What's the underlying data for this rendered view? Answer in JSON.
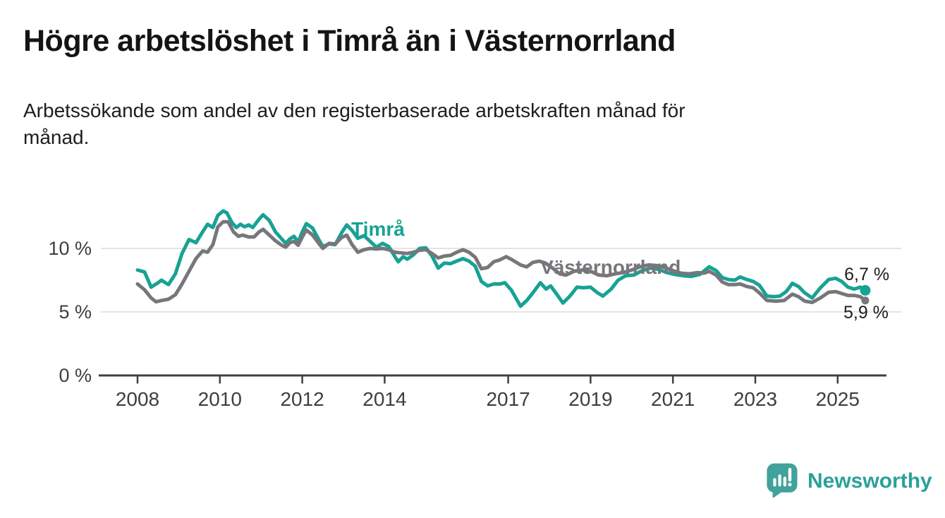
{
  "header": {
    "title": "Högre arbetslöshet i Timrå än i Västernorrland",
    "subtitle_line1": "Arbetssökande som andel av den registerbaserade arbetskraften månad för",
    "subtitle_line2": "månad."
  },
  "branding": {
    "name": "Newsworthy",
    "icon": "newsworthy-speech-bubble-bar-chart-icon",
    "icon_color": "#41a29b",
    "text_color": "#2aa199"
  },
  "chart_data": {
    "type": "line",
    "title": "Högre arbetslöshet i Timrå än i Västernorrland",
    "subtitle": "Arbetssökande som andel av den registerbaserade arbetskraften månad för månad.",
    "unit": "%",
    "xlim": [
      2008,
      2025.67
    ],
    "ylim": [
      0,
      14.5
    ],
    "legend_position": "inline-labels",
    "grid": "horizontal",
    "style": {
      "grid_color": "#dbdbdb",
      "axis_color": "#3f3f3f",
      "background": "#ffffff"
    },
    "y_axis": {
      "gridlines": [
        5,
        10
      ],
      "ticks": [
        {
          "value": 0,
          "label": "0 %"
        },
        {
          "value": 5,
          "label": "5 %"
        },
        {
          "value": 10,
          "label": "10 %"
        }
      ]
    },
    "x_axis": {
      "ticks": [
        {
          "year": 2008,
          "label": "2008"
        },
        {
          "year": 2010,
          "label": "2010"
        },
        {
          "year": 2012,
          "label": "2012"
        },
        {
          "year": 2014,
          "label": "2014"
        },
        {
          "year": 2017,
          "label": "2017"
        },
        {
          "year": 2019,
          "label": "2019"
        },
        {
          "year": 2021,
          "label": "2021"
        },
        {
          "year": 2023,
          "label": "2023"
        },
        {
          "year": 2025,
          "label": "2025"
        }
      ]
    },
    "series": [
      {
        "id": "timra",
        "name": "Timrå",
        "color": "#17a294",
        "width": 5,
        "end_dot_radius": 7.5,
        "latest_value_label": "6,7 %",
        "inline_label": {
          "text": "Timrå",
          "x": 2013.19,
          "y": 11.0
        },
        "points": [
          [
            2008.0,
            8.3
          ],
          [
            2008.17,
            8.15
          ],
          [
            2008.33,
            6.95
          ],
          [
            2008.5,
            7.3
          ],
          [
            2008.58,
            7.5
          ],
          [
            2008.75,
            7.15
          ],
          [
            2008.92,
            8.0
          ],
          [
            2009.08,
            9.6
          ],
          [
            2009.25,
            10.7
          ],
          [
            2009.42,
            10.45
          ],
          [
            2009.58,
            11.3
          ],
          [
            2009.7,
            11.9
          ],
          [
            2009.83,
            11.65
          ],
          [
            2009.95,
            12.6
          ],
          [
            2010.08,
            12.95
          ],
          [
            2010.17,
            12.8
          ],
          [
            2010.3,
            12.0
          ],
          [
            2010.4,
            11.65
          ],
          [
            2010.5,
            11.9
          ],
          [
            2010.6,
            11.7
          ],
          [
            2010.7,
            11.85
          ],
          [
            2010.8,
            11.65
          ],
          [
            2010.95,
            12.3
          ],
          [
            2011.05,
            12.65
          ],
          [
            2011.2,
            12.2
          ],
          [
            2011.35,
            11.3
          ],
          [
            2011.5,
            10.75
          ],
          [
            2011.6,
            10.4
          ],
          [
            2011.7,
            10.75
          ],
          [
            2011.8,
            10.95
          ],
          [
            2011.9,
            10.5
          ],
          [
            2012.0,
            11.3
          ],
          [
            2012.1,
            11.95
          ],
          [
            2012.25,
            11.6
          ],
          [
            2012.4,
            10.7
          ],
          [
            2012.5,
            10.15
          ],
          [
            2012.65,
            10.35
          ],
          [
            2012.8,
            10.3
          ],
          [
            2012.95,
            11.2
          ],
          [
            2013.08,
            11.85
          ],
          [
            2013.2,
            11.45
          ],
          [
            2013.35,
            10.8
          ],
          [
            2013.5,
            11.0
          ],
          [
            2013.65,
            10.55
          ],
          [
            2013.8,
            10.1
          ],
          [
            2013.95,
            10.4
          ],
          [
            2014.1,
            10.15
          ],
          [
            2014.25,
            9.35
          ],
          [
            2014.33,
            8.95
          ],
          [
            2014.45,
            9.35
          ],
          [
            2014.55,
            9.15
          ],
          [
            2014.7,
            9.5
          ],
          [
            2014.85,
            10.0
          ],
          [
            2015.0,
            10.05
          ],
          [
            2015.15,
            9.4
          ],
          [
            2015.3,
            8.45
          ],
          [
            2015.45,
            8.85
          ],
          [
            2015.6,
            8.8
          ],
          [
            2015.75,
            9.0
          ],
          [
            2015.9,
            9.2
          ],
          [
            2016.05,
            9.0
          ],
          [
            2016.2,
            8.6
          ],
          [
            2016.35,
            7.4
          ],
          [
            2016.5,
            7.05
          ],
          [
            2016.65,
            7.2
          ],
          [
            2016.8,
            7.2
          ],
          [
            2016.92,
            7.3
          ],
          [
            2017.08,
            6.7
          ],
          [
            2017.3,
            5.45
          ],
          [
            2017.45,
            5.9
          ],
          [
            2017.6,
            6.5
          ],
          [
            2017.78,
            7.3
          ],
          [
            2017.92,
            6.8
          ],
          [
            2018.03,
            7.05
          ],
          [
            2018.2,
            6.3
          ],
          [
            2018.33,
            5.7
          ],
          [
            2018.5,
            6.25
          ],
          [
            2018.67,
            6.95
          ],
          [
            2018.83,
            6.9
          ],
          [
            2019.0,
            6.95
          ],
          [
            2019.15,
            6.55
          ],
          [
            2019.3,
            6.25
          ],
          [
            2019.5,
            6.8
          ],
          [
            2019.67,
            7.5
          ],
          [
            2019.85,
            7.85
          ],
          [
            2020.05,
            7.9
          ],
          [
            2020.25,
            8.25
          ],
          [
            2020.45,
            8.45
          ],
          [
            2020.65,
            8.35
          ],
          [
            2020.85,
            8.1
          ],
          [
            2021.05,
            7.95
          ],
          [
            2021.25,
            7.85
          ],
          [
            2021.45,
            7.8
          ],
          [
            2021.65,
            7.95
          ],
          [
            2021.88,
            8.55
          ],
          [
            2022.05,
            8.25
          ],
          [
            2022.2,
            7.7
          ],
          [
            2022.35,
            7.55
          ],
          [
            2022.5,
            7.5
          ],
          [
            2022.63,
            7.75
          ],
          [
            2022.8,
            7.55
          ],
          [
            2022.95,
            7.4
          ],
          [
            2023.1,
            7.1
          ],
          [
            2023.28,
            6.25
          ],
          [
            2023.45,
            6.2
          ],
          [
            2023.6,
            6.25
          ],
          [
            2023.75,
            6.6
          ],
          [
            2023.9,
            7.25
          ],
          [
            2024.05,
            7.0
          ],
          [
            2024.2,
            6.5
          ],
          [
            2024.38,
            6.1
          ],
          [
            2024.58,
            6.9
          ],
          [
            2024.78,
            7.55
          ],
          [
            2024.95,
            7.65
          ],
          [
            2025.1,
            7.4
          ],
          [
            2025.25,
            6.95
          ],
          [
            2025.4,
            6.8
          ],
          [
            2025.55,
            6.95
          ],
          [
            2025.67,
            6.7
          ]
        ]
      },
      {
        "id": "vasternorrland",
        "name": "Västernorrland",
        "color": "#76767b",
        "width": 5,
        "end_dot_radius": 5.5,
        "latest_value_label": "5,9 %",
        "inline_label": {
          "text": "Västernorrland",
          "x": 2017.78,
          "y": 8.0
        },
        "points": [
          [
            2008.0,
            7.2
          ],
          [
            2008.17,
            6.75
          ],
          [
            2008.33,
            6.1
          ],
          [
            2008.45,
            5.8
          ],
          [
            2008.58,
            5.9
          ],
          [
            2008.75,
            6.0
          ],
          [
            2008.92,
            6.35
          ],
          [
            2009.08,
            7.2
          ],
          [
            2009.25,
            8.2
          ],
          [
            2009.42,
            9.2
          ],
          [
            2009.58,
            9.8
          ],
          [
            2009.7,
            9.7
          ],
          [
            2009.83,
            10.3
          ],
          [
            2009.95,
            11.7
          ],
          [
            2010.08,
            12.1
          ],
          [
            2010.2,
            12.1
          ],
          [
            2010.33,
            11.3
          ],
          [
            2010.45,
            10.95
          ],
          [
            2010.55,
            11.05
          ],
          [
            2010.7,
            10.9
          ],
          [
            2010.83,
            10.9
          ],
          [
            2010.95,
            11.3
          ],
          [
            2011.05,
            11.5
          ],
          [
            2011.2,
            11.05
          ],
          [
            2011.35,
            10.6
          ],
          [
            2011.5,
            10.25
          ],
          [
            2011.6,
            10.1
          ],
          [
            2011.7,
            10.45
          ],
          [
            2011.8,
            10.55
          ],
          [
            2011.9,
            10.25
          ],
          [
            2012.0,
            10.9
          ],
          [
            2012.1,
            11.45
          ],
          [
            2012.25,
            11.05
          ],
          [
            2012.4,
            10.4
          ],
          [
            2012.5,
            10.0
          ],
          [
            2012.65,
            10.4
          ],
          [
            2012.8,
            10.35
          ],
          [
            2012.95,
            10.85
          ],
          [
            2013.08,
            11.05
          ],
          [
            2013.2,
            10.35
          ],
          [
            2013.35,
            9.7
          ],
          [
            2013.5,
            9.9
          ],
          [
            2013.65,
            10.0
          ],
          [
            2013.8,
            9.95
          ],
          [
            2013.95,
            10.0
          ],
          [
            2014.1,
            9.9
          ],
          [
            2014.25,
            9.7
          ],
          [
            2014.4,
            9.65
          ],
          [
            2014.55,
            9.6
          ],
          [
            2014.7,
            9.7
          ],
          [
            2014.85,
            9.85
          ],
          [
            2015.0,
            9.9
          ],
          [
            2015.15,
            9.6
          ],
          [
            2015.3,
            9.25
          ],
          [
            2015.45,
            9.4
          ],
          [
            2015.6,
            9.45
          ],
          [
            2015.75,
            9.7
          ],
          [
            2015.9,
            9.9
          ],
          [
            2016.05,
            9.7
          ],
          [
            2016.2,
            9.3
          ],
          [
            2016.35,
            8.4
          ],
          [
            2016.5,
            8.5
          ],
          [
            2016.65,
            8.95
          ],
          [
            2016.8,
            9.1
          ],
          [
            2016.95,
            9.35
          ],
          [
            2017.1,
            9.1
          ],
          [
            2017.3,
            8.7
          ],
          [
            2017.45,
            8.55
          ],
          [
            2017.6,
            8.9
          ],
          [
            2017.75,
            9.0
          ],
          [
            2017.9,
            8.85
          ],
          [
            2018.1,
            8.4
          ],
          [
            2018.25,
            8.0
          ],
          [
            2018.4,
            7.9
          ],
          [
            2018.6,
            8.2
          ],
          [
            2018.8,
            8.3
          ],
          [
            2019.0,
            8.2
          ],
          [
            2019.2,
            7.9
          ],
          [
            2019.4,
            7.85
          ],
          [
            2019.6,
            8.0
          ],
          [
            2019.8,
            8.1
          ],
          [
            2020.0,
            8.3
          ],
          [
            2020.2,
            8.55
          ],
          [
            2020.4,
            8.7
          ],
          [
            2020.6,
            8.65
          ],
          [
            2020.8,
            8.5
          ],
          [
            2021.0,
            8.25
          ],
          [
            2021.2,
            8.05
          ],
          [
            2021.4,
            8.0
          ],
          [
            2021.6,
            8.1
          ],
          [
            2021.75,
            8.05
          ],
          [
            2021.88,
            8.2
          ],
          [
            2022.05,
            7.9
          ],
          [
            2022.2,
            7.35
          ],
          [
            2022.35,
            7.15
          ],
          [
            2022.5,
            7.15
          ],
          [
            2022.63,
            7.2
          ],
          [
            2022.8,
            7.0
          ],
          [
            2022.95,
            6.9
          ],
          [
            2023.1,
            6.5
          ],
          [
            2023.28,
            5.9
          ],
          [
            2023.5,
            5.85
          ],
          [
            2023.7,
            5.9
          ],
          [
            2023.9,
            6.4
          ],
          [
            2024.05,
            6.2
          ],
          [
            2024.2,
            5.85
          ],
          [
            2024.38,
            5.75
          ],
          [
            2024.58,
            6.1
          ],
          [
            2024.78,
            6.55
          ],
          [
            2024.95,
            6.6
          ],
          [
            2025.1,
            6.45
          ],
          [
            2025.25,
            6.3
          ],
          [
            2025.4,
            6.3
          ],
          [
            2025.55,
            6.2
          ],
          [
            2025.67,
            5.9
          ]
        ]
      }
    ],
    "annotations": [
      {
        "id": "timra-latest",
        "text": "6,7 %",
        "x": 2025.16,
        "y": 7.5
      },
      {
        "id": "vasternorrland-latest",
        "text": "5,9 %",
        "x": 2025.14,
        "y": 4.5
      }
    ]
  }
}
